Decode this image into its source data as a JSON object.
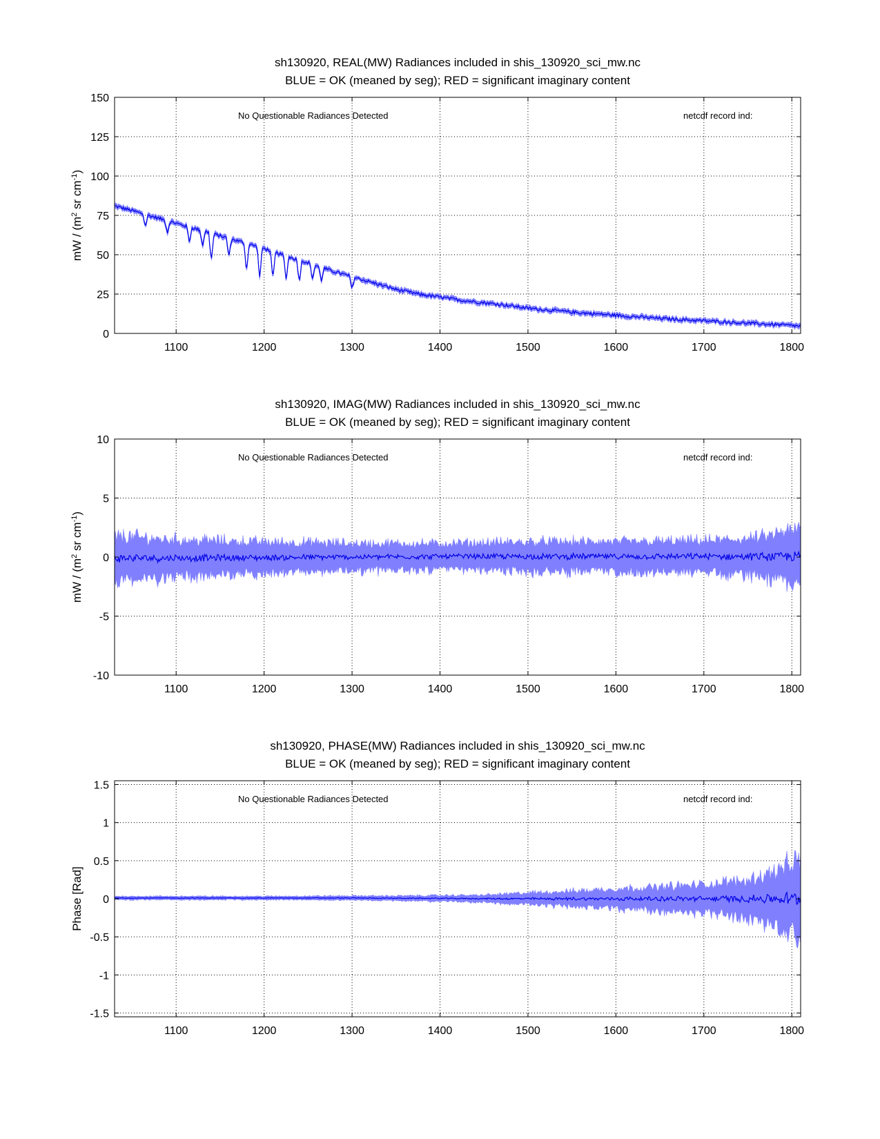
{
  "colors": {
    "band": "#8080ff",
    "mean": "#0000e6",
    "axis": "#000000",
    "grid": "#000000"
  },
  "chart_data": [
    {
      "type": "line",
      "title": "sh130920, REAL(MW) Radiances included in shis_130920_sci_mw.nc",
      "subtitle": "BLUE = OK (meaned by seg); RED = significant imaginary content",
      "annotation_left": "No Questionable Radiances Detected",
      "annotation_right": "netcdf record ind:",
      "xlabel": "",
      "ylabel": "mW / (m2 sr cm-1)",
      "ylabel_parts": {
        "a": "mW / (m",
        "b": "2",
        "c": " sr cm",
        "d": "-1",
        "e": ")"
      },
      "xlim": [
        1030,
        1810
      ],
      "ylim": [
        0,
        150
      ],
      "xticks": [
        1100,
        1200,
        1300,
        1400,
        1500,
        1600,
        1700,
        1800
      ],
      "yticks": [
        0,
        25,
        50,
        75,
        100,
        125,
        150
      ],
      "yticklabels": [
        "0",
        "25",
        "50",
        "75",
        "100",
        "125",
        "150"
      ],
      "grid": true,
      "series": [
        {
          "name": "mean",
          "x": [
            1030,
            1050,
            1075,
            1100,
            1125,
            1150,
            1175,
            1200,
            1225,
            1250,
            1275,
            1300,
            1325,
            1350,
            1375,
            1400,
            1425,
            1450,
            1475,
            1500,
            1550,
            1600,
            1650,
            1700,
            1750,
            1800,
            1810
          ],
          "values": [
            81,
            78,
            74,
            70,
            66,
            62,
            58,
            54,
            49,
            45,
            40,
            36,
            32,
            28,
            25,
            23,
            21,
            19.5,
            18,
            16,
            13.5,
            11.5,
            9.5,
            8,
            6.5,
            5,
            4.5
          ]
        },
        {
          "name": "dips",
          "x": [
            1065,
            1090,
            1115,
            1130,
            1140,
            1160,
            1180,
            1195,
            1210,
            1225,
            1240,
            1255,
            1265,
            1300
          ],
          "depth": [
            8,
            8,
            10,
            10,
            18,
            12,
            18,
            20,
            18,
            15,
            14,
            10,
            9,
            8
          ]
        }
      ],
      "band_halfwidth": 1.8
    },
    {
      "type": "line",
      "title": "sh130920, IMAG(MW) Radiances included in shis_130920_sci_mw.nc",
      "subtitle": "BLUE = OK (meaned by seg); RED = significant imaginary content",
      "annotation_left": "No Questionable Radiances Detected",
      "annotation_right": "netcdf record ind:",
      "xlabel": "",
      "ylabel": "mW / (m2 sr cm-1)",
      "ylabel_parts": {
        "a": "mW / (m",
        "b": "2",
        "c": " sr cm",
        "d": "-1",
        "e": ")"
      },
      "xlim": [
        1030,
        1810
      ],
      "ylim": [
        -10,
        10
      ],
      "xticks": [
        1100,
        1200,
        1300,
        1400,
        1500,
        1600,
        1700,
        1800
      ],
      "yticks": [
        -10,
        -5,
        0,
        5,
        10
      ],
      "yticklabels": [
        "-10",
        "-5",
        "0",
        "5",
        "10"
      ],
      "grid": true,
      "series": [
        {
          "name": "mean",
          "x": [
            1030,
            1200,
            1400,
            1600,
            1810
          ],
          "values": [
            -0.1,
            -0.05,
            0.05,
            0.05,
            0.05
          ]
        }
      ],
      "band_envelope": {
        "x": [
          1030,
          1100,
          1200,
          1300,
          1400,
          1500,
          1600,
          1700,
          1760,
          1810
        ],
        "halfwidth": [
          2.4,
          2.0,
          1.7,
          1.5,
          1.4,
          1.6,
          1.6,
          1.7,
          2.0,
          3.0
        ]
      }
    },
    {
      "type": "line",
      "title": "sh130920, PHASE(MW) Radiances included in shis_130920_sci_mw.nc",
      "subtitle": "BLUE = OK (meaned by seg); RED = significant imaginary content",
      "annotation_left": "No Questionable Radiances Detected",
      "annotation_right": "netcdf record ind:",
      "xlabel": "",
      "ylabel": "Phase [Rad]",
      "xlim": [
        1030,
        1810
      ],
      "ylim": [
        -1.55,
        1.55
      ],
      "xticks": [
        1100,
        1200,
        1300,
        1400,
        1500,
        1600,
        1700,
        1800
      ],
      "yticks": [
        -1.5,
        -1,
        -0.5,
        0,
        0.5,
        1,
        1.5
      ],
      "yticklabels": [
        "-1.5",
        "-1",
        "-0.5",
        "0",
        "0.5",
        "1",
        "1.5"
      ],
      "grid": true,
      "series": [
        {
          "name": "mean",
          "x": [
            1030,
            1300,
            1500,
            1810
          ],
          "values": [
            0.01,
            0.01,
            0.0,
            0.0
          ]
        }
      ],
      "band_envelope": {
        "x": [
          1030,
          1200,
          1350,
          1450,
          1500,
          1550,
          1600,
          1650,
          1700,
          1750,
          1780,
          1810
        ],
        "halfwidth": [
          0.03,
          0.03,
          0.04,
          0.06,
          0.1,
          0.13,
          0.17,
          0.2,
          0.24,
          0.32,
          0.45,
          0.65
        ]
      }
    }
  ]
}
